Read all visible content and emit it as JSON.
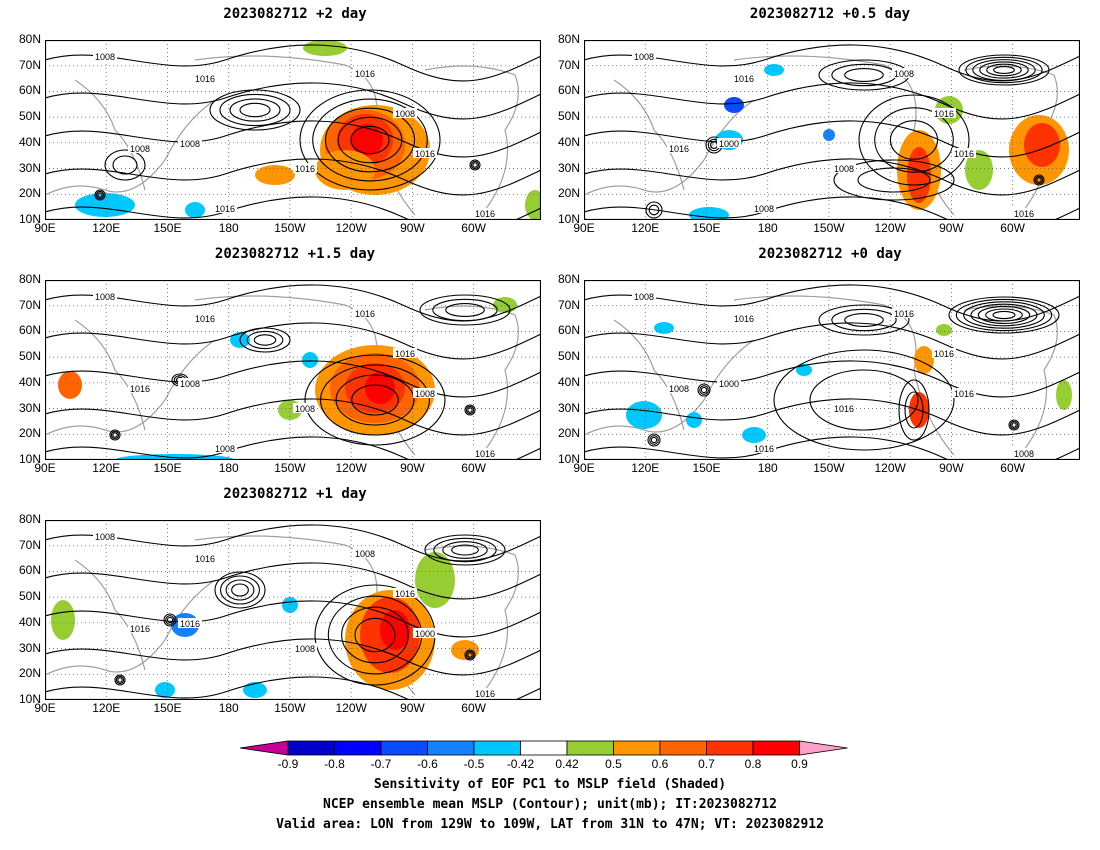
{
  "panels": [
    {
      "title": "2023082712 +2 day",
      "pattern": "a",
      "contour_labels": [
        "1008",
        "1016",
        "1016",
        "1008",
        "1016",
        "1008",
        "1008",
        "1016",
        "1016",
        "1016"
      ]
    },
    {
      "title": "2023082712 +0.5 day",
      "pattern": "b",
      "contour_labels": [
        "1008",
        "1016",
        "1008",
        "1016",
        "1016",
        "1000",
        "1016",
        "1008",
        "1016",
        "1008"
      ]
    },
    {
      "title": "2023082712 +1.5 day",
      "pattern": "c",
      "contour_labels": [
        "1008",
        "1016",
        "1016",
        "1016",
        "1008",
        "1008",
        "1016",
        "1008",
        "1016",
        "1008"
      ]
    },
    {
      "title": "2023082712 +0 day",
      "pattern": "d",
      "contour_labels": [
        "1008",
        "1016",
        "1016",
        "1008",
        "1016",
        "1000",
        "1016",
        "1016",
        "1008",
        "1016"
      ]
    },
    {
      "title": "2023082712 +1 day",
      "pattern": "e",
      "contour_labels": [
        "1008",
        "1016",
        "1008",
        "1016",
        "1000",
        "1016",
        "1016",
        "1008",
        "1016"
      ]
    }
  ],
  "axes": {
    "lat_ticks": [
      "80N",
      "70N",
      "60N",
      "50N",
      "40N",
      "30N",
      "20N",
      "10N"
    ],
    "lon_ticks": [
      "90E",
      "120E",
      "150E",
      "180",
      "150W",
      "120W",
      "90W",
      "60W"
    ]
  },
  "colorbar": {
    "labels": [
      "-0.9",
      "-0.8",
      "-0.7",
      "-0.6",
      "-0.5",
      "-0.42",
      "0.42",
      "0.5",
      "0.6",
      "0.7",
      "0.8",
      "0.9"
    ],
    "colors": [
      "#0000c8",
      "#0000ff",
      "#0a4bff",
      "#1482ff",
      "#00c8ff",
      "#ffffff",
      "#96cd32",
      "#ff9600",
      "#ff6400",
      "#ff3200",
      "#ff0000"
    ],
    "low_end": "#c8009a",
    "high_end": "#ffa0c8"
  },
  "caption": {
    "line1": "Sensitivity of EOF PC1 to MSLP field (Shaded)",
    "line2": "NCEP ensemble mean MSLP (Contour); unit(mb); IT:2023082712",
    "line3": "Valid area: LON from 129W to 109W, LAT from 31N to 47N; VT: 2023082912"
  }
}
